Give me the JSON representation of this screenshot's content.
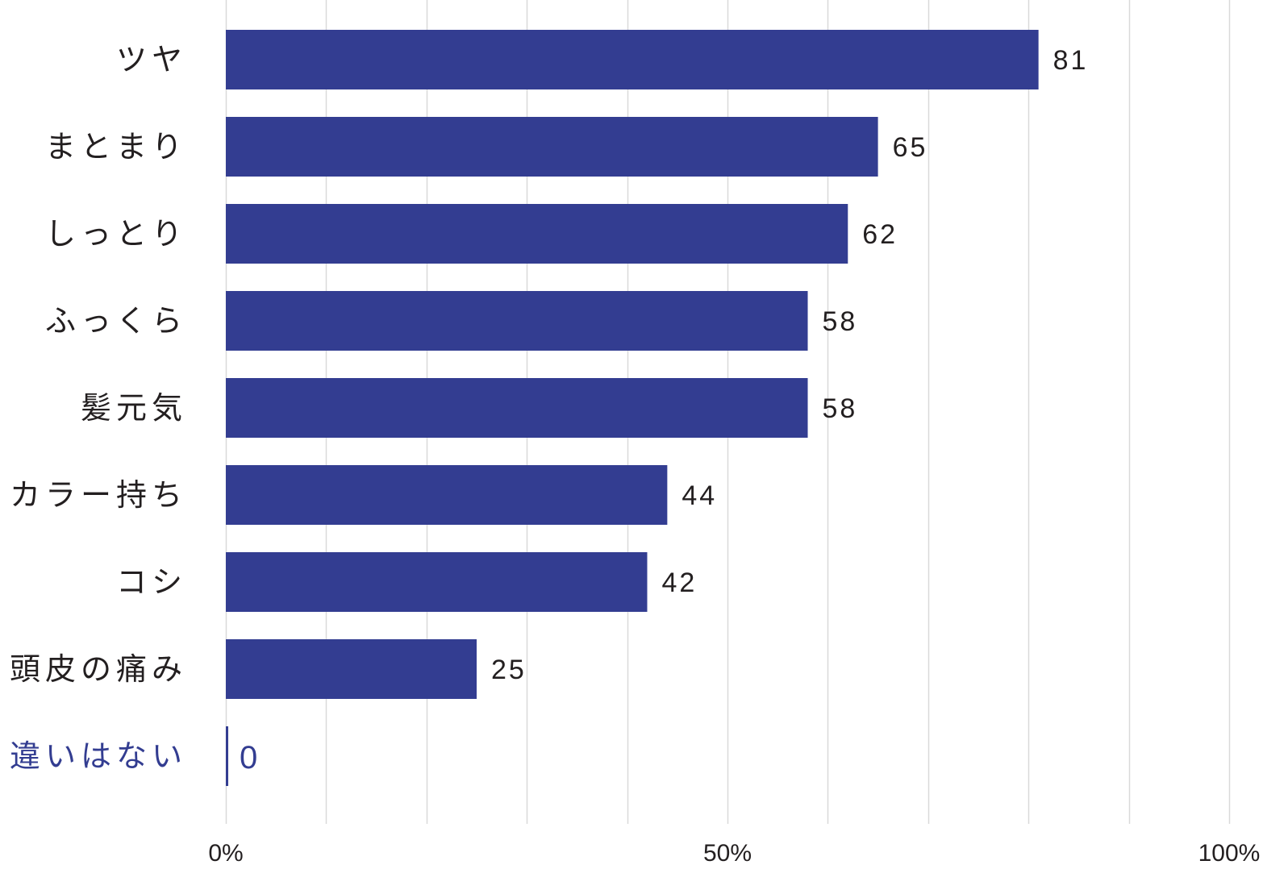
{
  "chart_data": {
    "type": "bar",
    "orientation": "horizontal",
    "categories": [
      "ツヤ",
      "まとまり",
      "しっとり",
      "ふっくら",
      "髪元気",
      "カラー持ち",
      "コシ",
      "頭皮の痛み",
      "違いはない"
    ],
    "values": [
      81,
      65,
      62,
      58,
      58,
      44,
      42,
      25,
      0
    ],
    "value_labels": [
      "81",
      "65",
      "62",
      "58",
      "58",
      "44",
      "42",
      "25",
      "0"
    ],
    "highlighted_category": "違いはない",
    "xlim": [
      0,
      100
    ],
    "x_ticks": [
      0,
      50,
      100
    ],
    "x_tick_labels": [
      "0%",
      "50%",
      "100%"
    ],
    "grid_step": 10,
    "grid": true,
    "title": "",
    "xlabel": "",
    "ylabel": "",
    "colors": {
      "bar": "#333d91",
      "highlight_text": "#333d91",
      "text": "#231f20",
      "grid": "#d9d9d9"
    }
  }
}
